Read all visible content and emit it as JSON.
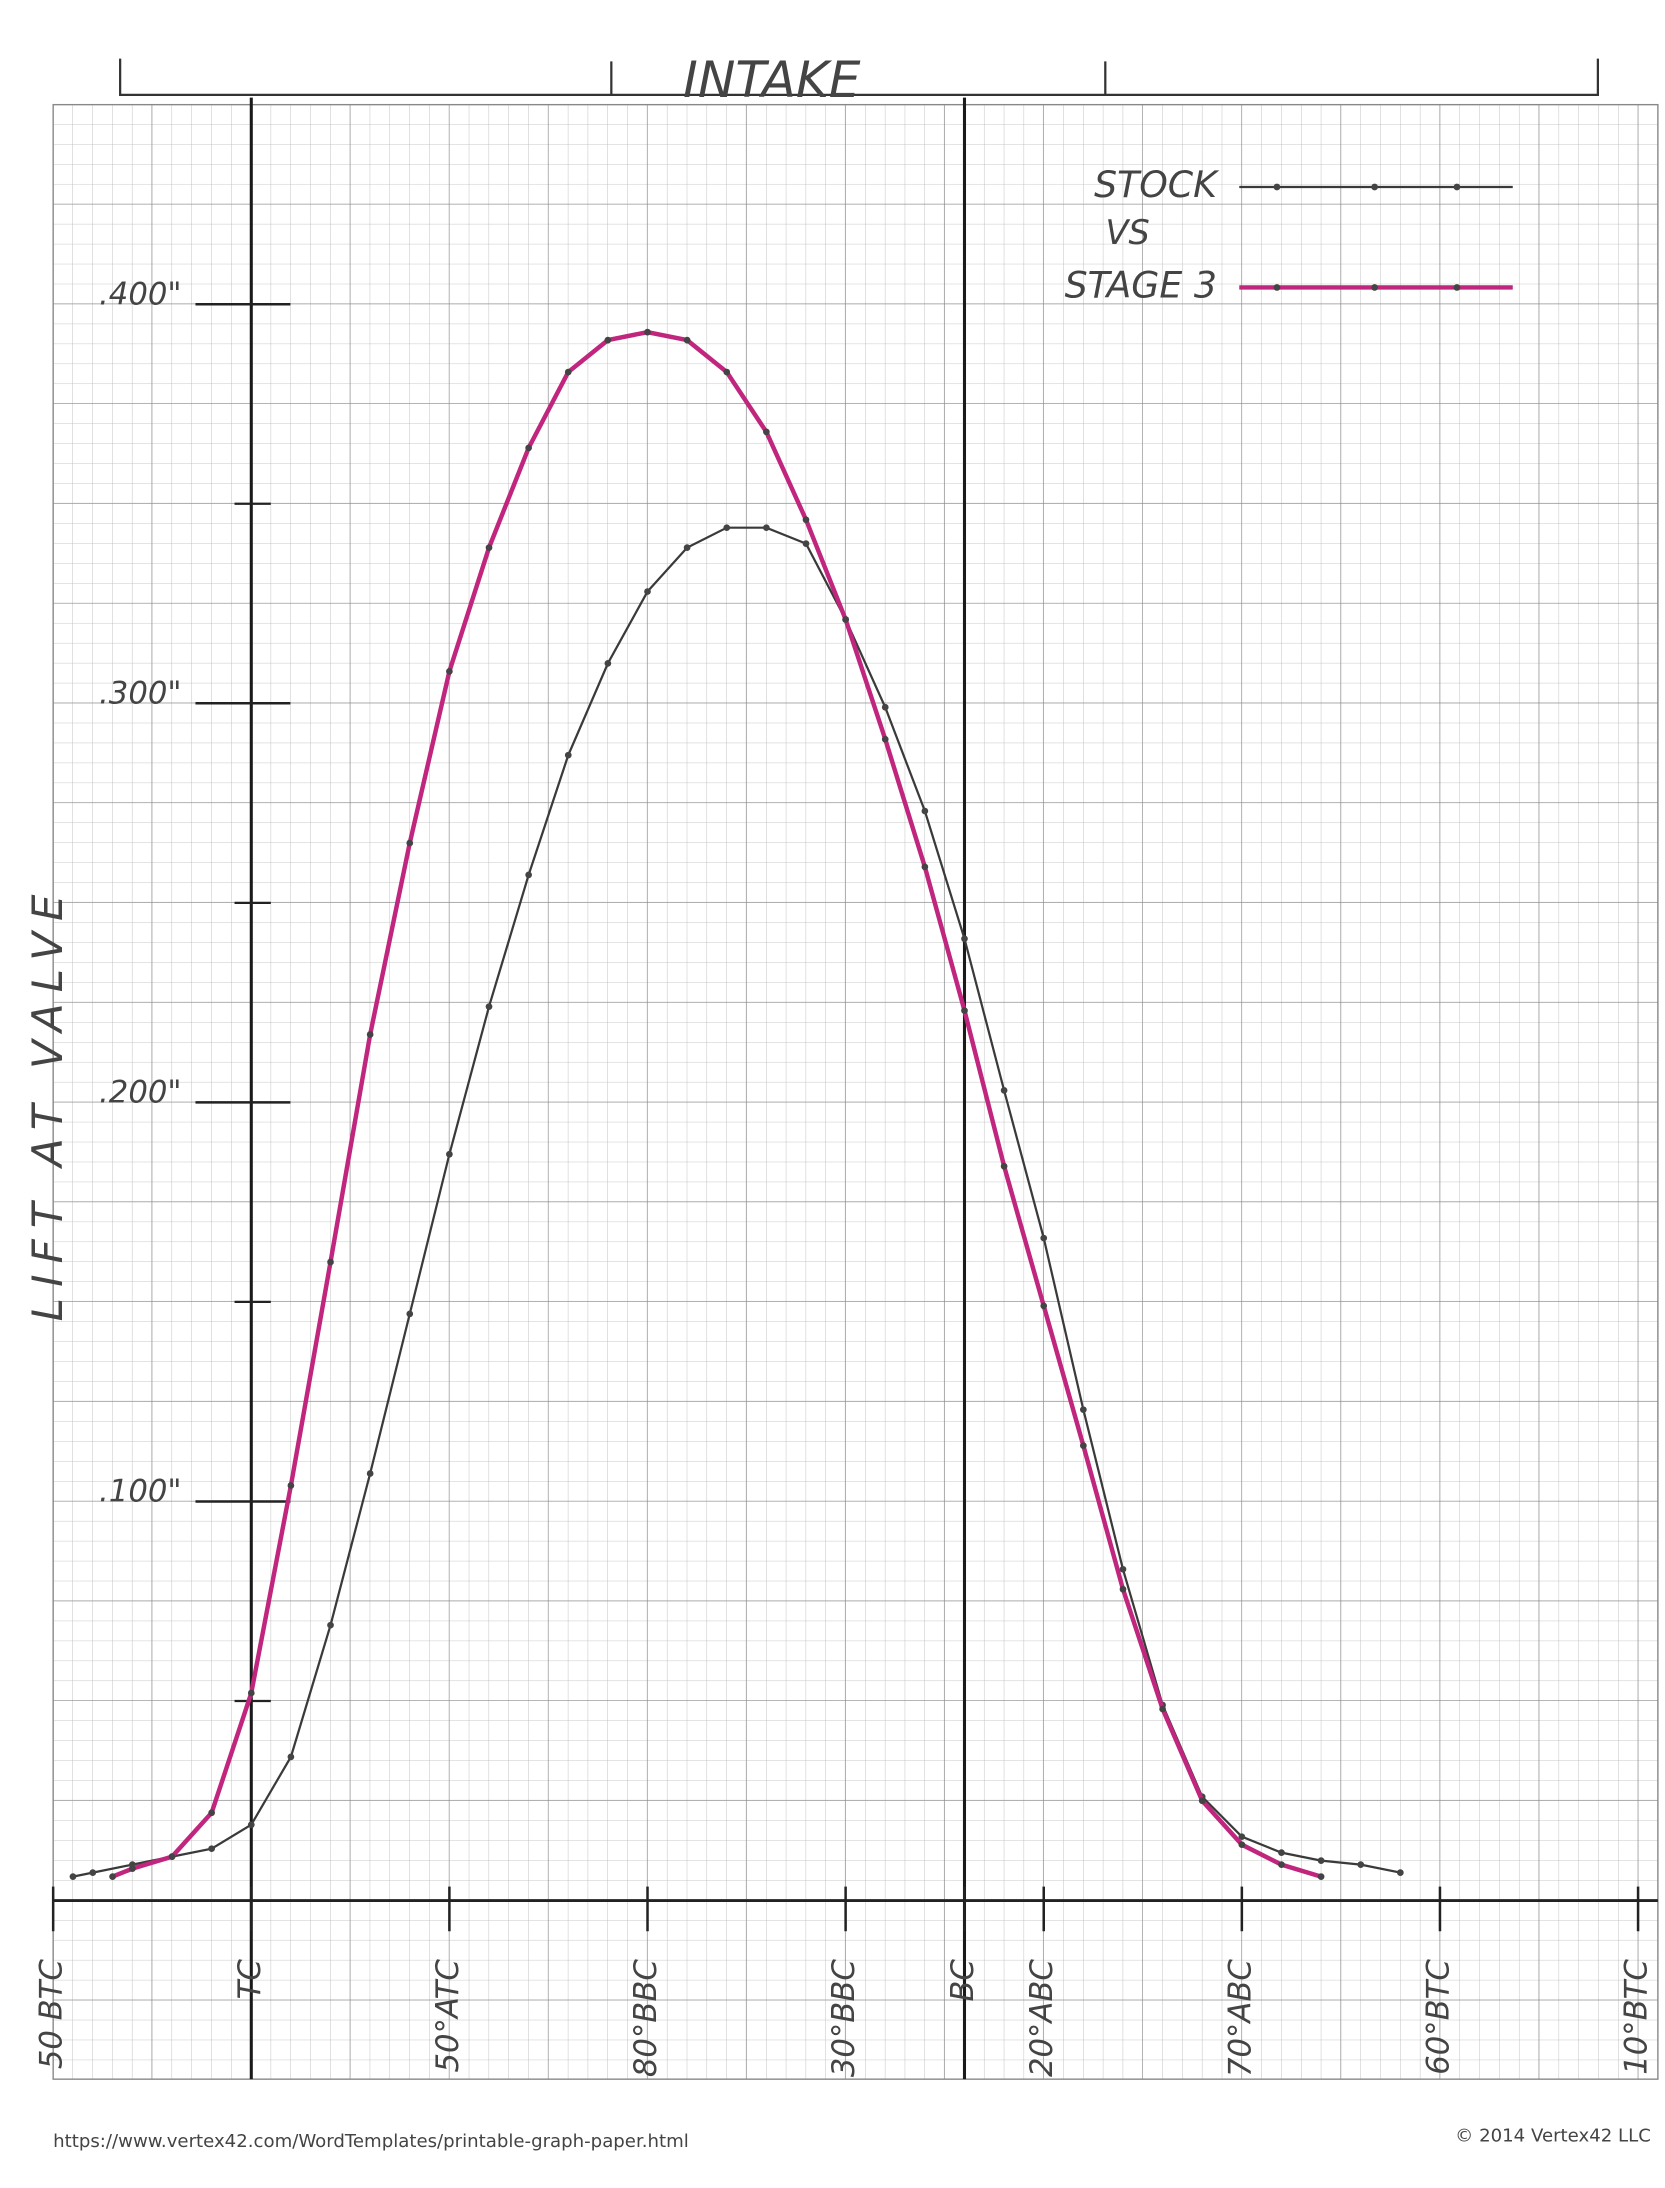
{
  "chart_data": {
    "type": "line",
    "title": "INTAKE",
    "y_label": "LIFT AT VALVE",
    "legend_joiner": "VS",
    "footer_left": "https://www.vertex42.com/WordTemplates/printable-graph-paper.html",
    "footer_right": "© 2014 Vertex42 LLC",
    "xlim": [
      -50,
      355
    ],
    "xticks": [
      {
        "value": -50,
        "label": "50 BTC"
      },
      {
        "value": 0,
        "label": "TC"
      },
      {
        "value": 50,
        "label": "50°ATC"
      },
      {
        "value": 100,
        "label": "80°BBC"
      },
      {
        "value": 150,
        "label": "30°BBC"
      },
      {
        "value": 180,
        "label": "BC"
      },
      {
        "value": 200,
        "label": "20°ABC"
      },
      {
        "value": 250,
        "label": "70°ABC"
      },
      {
        "value": 300,
        "label": "60°BTC"
      },
      {
        "value": 350,
        "label": "10°BTC"
      }
    ],
    "vlines": [
      0,
      180
    ],
    "ylim": [
      0,
      0.45
    ],
    "yticks": [
      {
        "value": 0.1,
        "label": ".100\""
      },
      {
        "value": 0.2,
        "label": ".200\""
      },
      {
        "value": 0.3,
        "label": ".300\""
      },
      {
        "value": 0.4,
        "label": ".400\""
      }
    ],
    "grid": true,
    "legend": "upper right",
    "series": [
      {
        "name": "STOCK",
        "color": "#3a3a3a",
        "x": [
          -45,
          -40,
          -30,
          -20,
          -10,
          0,
          10,
          20,
          30,
          40,
          50,
          60,
          70,
          80,
          90,
          100,
          110,
          120,
          130,
          140,
          150,
          160,
          170,
          180,
          190,
          200,
          210,
          220,
          230,
          240,
          250,
          260,
          270,
          280,
          290
        ],
        "values": [
          0.006,
          0.007,
          0.009,
          0.011,
          0.013,
          0.019,
          0.036,
          0.069,
          0.107,
          0.147,
          0.187,
          0.224,
          0.257,
          0.287,
          0.31,
          0.328,
          0.339,
          0.344,
          0.344,
          0.34,
          0.321,
          0.299,
          0.273,
          0.241,
          0.203,
          0.166,
          0.123,
          0.083,
          0.049,
          0.026,
          0.016,
          0.012,
          0.01,
          0.009,
          0.007
        ]
      },
      {
        "name": "STAGE 3",
        "color": "#c0267e",
        "x": [
          -35,
          -30,
          -20,
          -10,
          0,
          10,
          20,
          30,
          40,
          50,
          60,
          70,
          80,
          90,
          100,
          110,
          120,
          130,
          140,
          150,
          160,
          170,
          180,
          190,
          200,
          210,
          220,
          230,
          240,
          250,
          260,
          270
        ],
        "values": [
          0.006,
          0.008,
          0.011,
          0.022,
          0.052,
          0.104,
          0.16,
          0.217,
          0.265,
          0.308,
          0.339,
          0.364,
          0.383,
          0.391,
          0.393,
          0.391,
          0.383,
          0.368,
          0.346,
          0.321,
          0.291,
          0.259,
          0.223,
          0.184,
          0.149,
          0.114,
          0.078,
          0.048,
          0.025,
          0.014,
          0.009,
          0.006
        ]
      }
    ]
  }
}
